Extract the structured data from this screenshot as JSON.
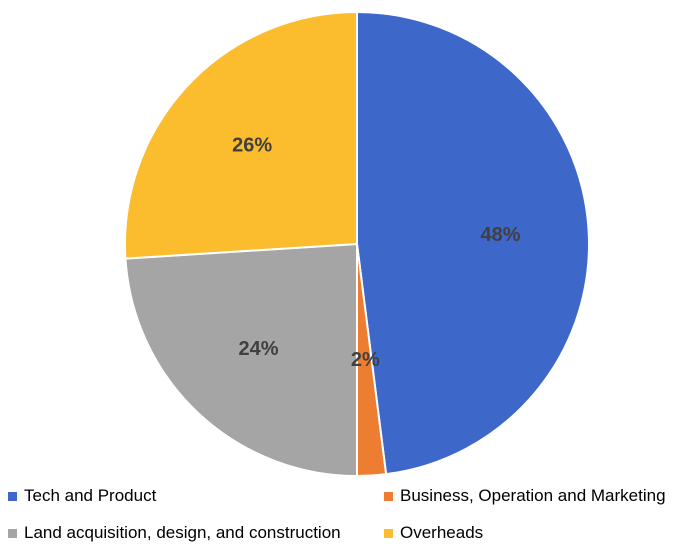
{
  "chart_data": {
    "type": "pie",
    "title": "",
    "slices": [
      {
        "name": "Tech and Product",
        "value": 48,
        "label": "48%",
        "color": "#3d67c9"
      },
      {
        "name": "Business, Operation and Marketing",
        "value": 2,
        "label": "2%",
        "color": "#ed7d31"
      },
      {
        "name": "Land acquisition, design, and construction",
        "value": 24,
        "label": "24%",
        "color": "#a5a5a5"
      },
      {
        "name": "Overheads",
        "value": 26,
        "label": "26%",
        "color": "#fbbc2d"
      }
    ],
    "start_angle_deg": 0,
    "direction": "clockwise",
    "legend_position": "bottom",
    "legend": [
      {
        "label": "Tech and Product",
        "color": "#3d67c9"
      },
      {
        "label": "Business, Operation and Marketing",
        "color": "#ed7d31"
      },
      {
        "label": "Land acquisition, design, and construction",
        "color": "#a5a5a5"
      },
      {
        "label": "Overheads",
        "color": "#fbbc2d"
      }
    ]
  }
}
